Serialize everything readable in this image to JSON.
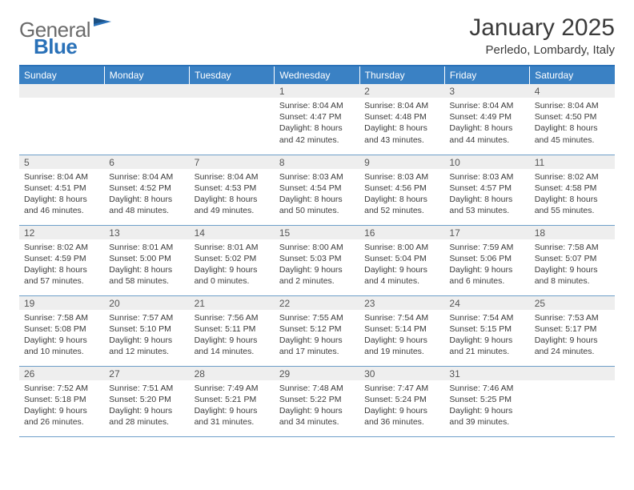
{
  "logo": {
    "word1": "General",
    "word2": "Blue"
  },
  "title": "January 2025",
  "location": "Perledo, Lombardy, Italy",
  "colors": {
    "header_bg": "#3a81c4",
    "rule": "#2a71b8",
    "cell_border": "#6e9fc9",
    "daynum_bg": "#eeeeee",
    "text": "#3b3b3b"
  },
  "weekdays": [
    "Sunday",
    "Monday",
    "Tuesday",
    "Wednesday",
    "Thursday",
    "Friday",
    "Saturday"
  ],
  "weeks": [
    [
      null,
      null,
      null,
      {
        "n": "1",
        "sr": "8:04 AM",
        "ss": "4:47 PM",
        "dh": "8",
        "dm": "42"
      },
      {
        "n": "2",
        "sr": "8:04 AM",
        "ss": "4:48 PM",
        "dh": "8",
        "dm": "43"
      },
      {
        "n": "3",
        "sr": "8:04 AM",
        "ss": "4:49 PM",
        "dh": "8",
        "dm": "44"
      },
      {
        "n": "4",
        "sr": "8:04 AM",
        "ss": "4:50 PM",
        "dh": "8",
        "dm": "45"
      }
    ],
    [
      {
        "n": "5",
        "sr": "8:04 AM",
        "ss": "4:51 PM",
        "dh": "8",
        "dm": "46"
      },
      {
        "n": "6",
        "sr": "8:04 AM",
        "ss": "4:52 PM",
        "dh": "8",
        "dm": "48"
      },
      {
        "n": "7",
        "sr": "8:04 AM",
        "ss": "4:53 PM",
        "dh": "8",
        "dm": "49"
      },
      {
        "n": "8",
        "sr": "8:03 AM",
        "ss": "4:54 PM",
        "dh": "8",
        "dm": "50"
      },
      {
        "n": "9",
        "sr": "8:03 AM",
        "ss": "4:56 PM",
        "dh": "8",
        "dm": "52"
      },
      {
        "n": "10",
        "sr": "8:03 AM",
        "ss": "4:57 PM",
        "dh": "8",
        "dm": "53"
      },
      {
        "n": "11",
        "sr": "8:02 AM",
        "ss": "4:58 PM",
        "dh": "8",
        "dm": "55"
      }
    ],
    [
      {
        "n": "12",
        "sr": "8:02 AM",
        "ss": "4:59 PM",
        "dh": "8",
        "dm": "57"
      },
      {
        "n": "13",
        "sr": "8:01 AM",
        "ss": "5:00 PM",
        "dh": "8",
        "dm": "58"
      },
      {
        "n": "14",
        "sr": "8:01 AM",
        "ss": "5:02 PM",
        "dh": "9",
        "dm": "0"
      },
      {
        "n": "15",
        "sr": "8:00 AM",
        "ss": "5:03 PM",
        "dh": "9",
        "dm": "2"
      },
      {
        "n": "16",
        "sr": "8:00 AM",
        "ss": "5:04 PM",
        "dh": "9",
        "dm": "4"
      },
      {
        "n": "17",
        "sr": "7:59 AM",
        "ss": "5:06 PM",
        "dh": "9",
        "dm": "6"
      },
      {
        "n": "18",
        "sr": "7:58 AM",
        "ss": "5:07 PM",
        "dh": "9",
        "dm": "8"
      }
    ],
    [
      {
        "n": "19",
        "sr": "7:58 AM",
        "ss": "5:08 PM",
        "dh": "9",
        "dm": "10"
      },
      {
        "n": "20",
        "sr": "7:57 AM",
        "ss": "5:10 PM",
        "dh": "9",
        "dm": "12"
      },
      {
        "n": "21",
        "sr": "7:56 AM",
        "ss": "5:11 PM",
        "dh": "9",
        "dm": "14"
      },
      {
        "n": "22",
        "sr": "7:55 AM",
        "ss": "5:12 PM",
        "dh": "9",
        "dm": "17"
      },
      {
        "n": "23",
        "sr": "7:54 AM",
        "ss": "5:14 PM",
        "dh": "9",
        "dm": "19"
      },
      {
        "n": "24",
        "sr": "7:54 AM",
        "ss": "5:15 PM",
        "dh": "9",
        "dm": "21"
      },
      {
        "n": "25",
        "sr": "7:53 AM",
        "ss": "5:17 PM",
        "dh": "9",
        "dm": "24"
      }
    ],
    [
      {
        "n": "26",
        "sr": "7:52 AM",
        "ss": "5:18 PM",
        "dh": "9",
        "dm": "26"
      },
      {
        "n": "27",
        "sr": "7:51 AM",
        "ss": "5:20 PM",
        "dh": "9",
        "dm": "28"
      },
      {
        "n": "28",
        "sr": "7:49 AM",
        "ss": "5:21 PM",
        "dh": "9",
        "dm": "31"
      },
      {
        "n": "29",
        "sr": "7:48 AM",
        "ss": "5:22 PM",
        "dh": "9",
        "dm": "34"
      },
      {
        "n": "30",
        "sr": "7:47 AM",
        "ss": "5:24 PM",
        "dh": "9",
        "dm": "36"
      },
      {
        "n": "31",
        "sr": "7:46 AM",
        "ss": "5:25 PM",
        "dh": "9",
        "dm": "39"
      },
      null
    ]
  ],
  "labels": {
    "sunrise": "Sunrise:",
    "sunset": "Sunset:",
    "daylight": "Daylight:",
    "hours": "hours",
    "and": "and",
    "minutes": "minutes."
  }
}
